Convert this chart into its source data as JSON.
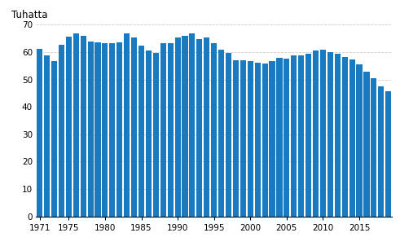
{
  "years": [
    1971,
    1972,
    1973,
    1974,
    1975,
    1976,
    1977,
    1978,
    1979,
    1980,
    1981,
    1982,
    1983,
    1984,
    1985,
    1986,
    1987,
    1988,
    1989,
    1990,
    1991,
    1992,
    1993,
    1994,
    1995,
    1996,
    1997,
    1998,
    1999,
    2000,
    2001,
    2002,
    2003,
    2004,
    2005,
    2006,
    2007,
    2008,
    2009,
    2010,
    2011,
    2012,
    2013,
    2014,
    2015,
    2016,
    2017,
    2018,
    2019
  ],
  "values": [
    61.1,
    58.9,
    56.8,
    62.5,
    65.7,
    66.8,
    65.9,
    63.9,
    63.5,
    63.1,
    63.2,
    63.6,
    66.7,
    65.3,
    62.4,
    60.6,
    59.7,
    63.3,
    63.2,
    65.4,
    66.0,
    66.7,
    64.8,
    65.2,
    63.1,
    60.7,
    59.6,
    57.1,
    57.1,
    56.7,
    56.2,
    55.8,
    56.7,
    57.8,
    57.7,
    58.8,
    58.7,
    59.5,
    60.6,
    60.9,
    59.9,
    59.5,
    58.1,
    57.2,
    55.5,
    52.8,
    50.3,
    47.6,
    45.6
  ],
  "bar_color": "#1a7abf",
  "ylabel": "Tuhatta",
  "ylim": [
    0,
    70
  ],
  "yticks": [
    0,
    10,
    20,
    30,
    40,
    50,
    60,
    70
  ],
  "xticks": [
    1971,
    1975,
    1980,
    1985,
    1990,
    1995,
    2000,
    2005,
    2010,
    2015
  ],
  "grid_color": "#cccccc",
  "background_color": "#ffffff",
  "bar_edge_color": "none"
}
